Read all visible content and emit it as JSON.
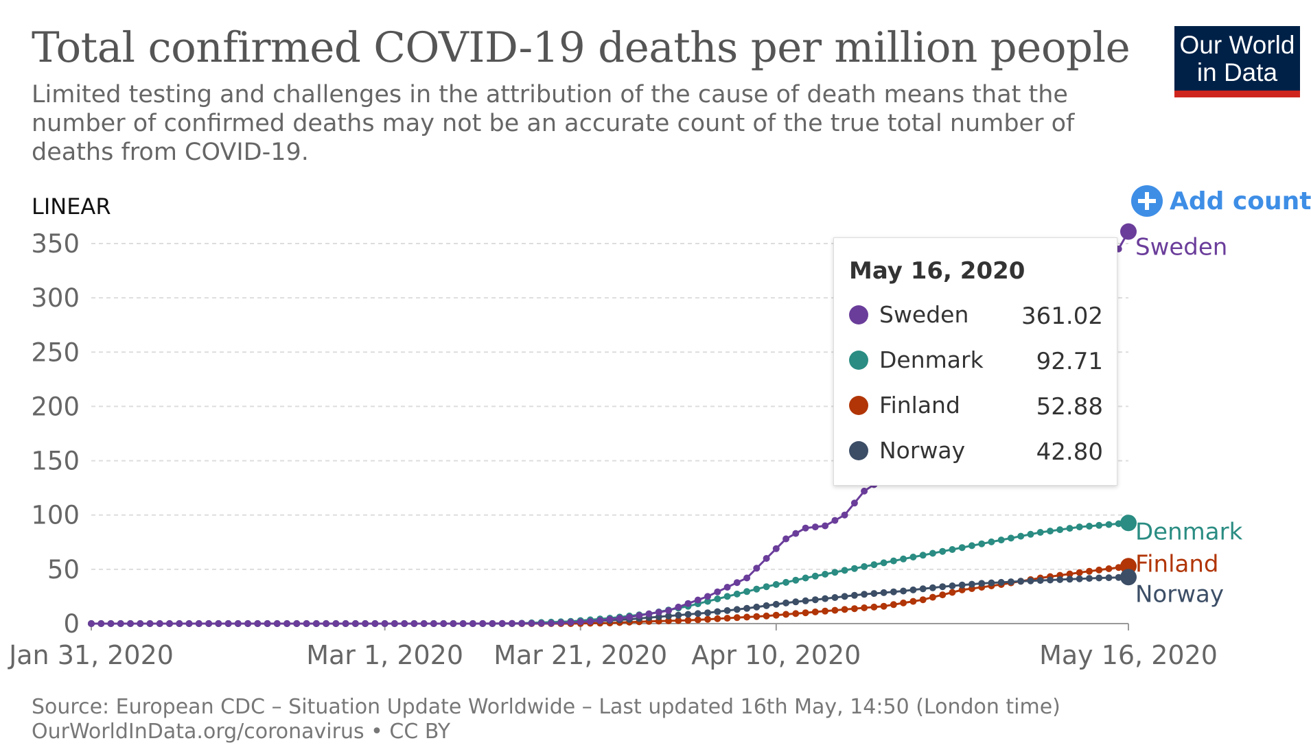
{
  "header": {
    "title": "Total confirmed COVID-19 deaths per million people",
    "subtitle": "Limited testing and challenges in the attribution of the cause of death means that the number of confirmed deaths may not be an accurate count of the true total number of deaths from COVID-19."
  },
  "logo": {
    "line1": "Our World",
    "line2": "in Data"
  },
  "controls": {
    "scale_label": "LINEAR",
    "add_country_label": "Add country",
    "add_icon": "plus-circle-icon"
  },
  "colors": {
    "Sweden": "#6a3d9a",
    "Denmark": "#2a8c82",
    "Finland": "#b13507",
    "Norway": "#3c4e66",
    "accent": "#3e8ee6",
    "logo_bg": "#002147",
    "logo_bar": "#ce261e"
  },
  "tooltip": {
    "date": "May 16, 2020",
    "rows": [
      {
        "name": "Sweden",
        "value": "361.02"
      },
      {
        "name": "Denmark",
        "value": "92.71"
      },
      {
        "name": "Finland",
        "value": "52.88"
      },
      {
        "name": "Norway",
        "value": "42.80"
      }
    ]
  },
  "chart_data": {
    "type": "line",
    "x_format": "date",
    "xlim": [
      "2020-01-31",
      "2020-05-16"
    ],
    "ylim": [
      0,
      350
    ],
    "yticks": [
      0,
      50,
      100,
      150,
      200,
      250,
      300,
      350
    ],
    "xtick_labels": [
      {
        "date": "2020-01-31",
        "label": "Jan 31, 2020"
      },
      {
        "date": "2020-03-01",
        "label": "Mar 1, 2020"
      },
      {
        "date": "2020-03-21",
        "label": "Mar 21, 2020"
      },
      {
        "date": "2020-04-10",
        "label": "Apr 10, 2020"
      },
      {
        "date": "2020-05-16",
        "label": "May 16, 2020"
      }
    ],
    "grid": "horizontal dashed",
    "legend": "line-end labels",
    "series": [
      {
        "name": "Sweden",
        "points": [
          [
            "2020-01-31",
            0
          ],
          [
            "2020-03-10",
            0
          ],
          [
            "2020-03-18",
            0.3
          ],
          [
            "2020-03-22",
            2
          ],
          [
            "2020-03-26",
            6
          ],
          [
            "2020-03-30",
            12
          ],
          [
            "2020-04-03",
            25
          ],
          [
            "2020-04-07",
            42
          ],
          [
            "2020-04-09",
            60
          ],
          [
            "2020-04-11",
            78
          ],
          [
            "2020-04-13",
            88
          ],
          [
            "2020-04-15",
            90
          ],
          [
            "2020-04-17",
            100
          ],
          [
            "2020-04-19",
            122
          ],
          [
            "2020-04-22",
            140
          ],
          [
            "2020-04-25",
            155
          ],
          [
            "2020-04-28",
            180
          ],
          [
            "2020-05-01",
            210
          ],
          [
            "2020-05-04",
            225
          ],
          [
            "2020-05-07",
            255
          ],
          [
            "2020-05-10",
            285
          ],
          [
            "2020-05-13",
            320
          ],
          [
            "2020-05-15",
            345
          ],
          [
            "2020-05-16",
            361.02
          ]
        ]
      },
      {
        "name": "Denmark",
        "points": [
          [
            "2020-01-31",
            0
          ],
          [
            "2020-03-14",
            0
          ],
          [
            "2020-03-20",
            2
          ],
          [
            "2020-03-24",
            5
          ],
          [
            "2020-03-28",
            9
          ],
          [
            "2020-04-01",
            16
          ],
          [
            "2020-04-05",
            25
          ],
          [
            "2020-04-09",
            34
          ],
          [
            "2020-04-13",
            42
          ],
          [
            "2020-04-17",
            49
          ],
          [
            "2020-04-21",
            56
          ],
          [
            "2020-04-25",
            63
          ],
          [
            "2020-04-29",
            70
          ],
          [
            "2020-05-03",
            77
          ],
          [
            "2020-05-07",
            84
          ],
          [
            "2020-05-11",
            89
          ],
          [
            "2020-05-16",
            92.71
          ]
        ]
      },
      {
        "name": "Finland",
        "points": [
          [
            "2020-01-31",
            0
          ],
          [
            "2020-03-20",
            0
          ],
          [
            "2020-03-24",
            0.6
          ],
          [
            "2020-03-28",
            2
          ],
          [
            "2020-04-01",
            3
          ],
          [
            "2020-04-05",
            5
          ],
          [
            "2020-04-09",
            7
          ],
          [
            "2020-04-13",
            10
          ],
          [
            "2020-04-17",
            13
          ],
          [
            "2020-04-21",
            16
          ],
          [
            "2020-04-25",
            22
          ],
          [
            "2020-04-29",
            31
          ],
          [
            "2020-05-03",
            36
          ],
          [
            "2020-05-07",
            42
          ],
          [
            "2020-05-11",
            47
          ],
          [
            "2020-05-16",
            52.88
          ]
        ]
      },
      {
        "name": "Norway",
        "points": [
          [
            "2020-01-31",
            0
          ],
          [
            "2020-03-12",
            0
          ],
          [
            "2020-03-18",
            0.5
          ],
          [
            "2020-03-22",
            2
          ],
          [
            "2020-03-26",
            4
          ],
          [
            "2020-03-30",
            7
          ],
          [
            "2020-04-03",
            10
          ],
          [
            "2020-04-07",
            14
          ],
          [
            "2020-04-11",
            19
          ],
          [
            "2020-04-15",
            23
          ],
          [
            "2020-04-19",
            27
          ],
          [
            "2020-04-23",
            30
          ],
          [
            "2020-04-27",
            34
          ],
          [
            "2020-05-01",
            37
          ],
          [
            "2020-05-05",
            39
          ],
          [
            "2020-05-09",
            40.5
          ],
          [
            "2020-05-13",
            42
          ],
          [
            "2020-05-16",
            42.8
          ]
        ]
      }
    ]
  },
  "footer": {
    "source_line": "Source: European CDC – Situation Update Worldwide – Last updated 16th May, 14:50 (London time)",
    "link": "OurWorldInData.org/coronavirus",
    "license": " • CC BY"
  }
}
